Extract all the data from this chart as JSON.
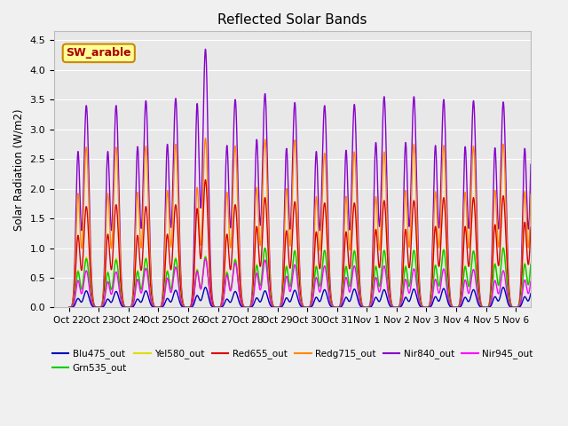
{
  "title": "Reflected Solar Bands",
  "ylabel": "Solar Radiation (W/m2)",
  "ylim": [
    0,
    4.65
  ],
  "yticks": [
    0.0,
    0.5,
    1.0,
    1.5,
    2.0,
    2.5,
    3.0,
    3.5,
    4.0,
    4.5
  ],
  "background_color": "#f0f0f0",
  "plot_bg_color": "#e8e8e8",
  "grid_color": "#ffffff",
  "annotation_text": "SW_arable",
  "annotation_bg": "#ffff99",
  "annotation_border": "#cc8800",
  "annotation_text_color": "#aa0000",
  "series": {
    "Blu475_out": {
      "color": "#0000bb",
      "lw": 1.0
    },
    "Grn535_out": {
      "color": "#00cc00",
      "lw": 1.0
    },
    "Yel580_out": {
      "color": "#dddd00",
      "lw": 1.0
    },
    "Red655_out": {
      "color": "#dd0000",
      "lw": 1.0
    },
    "Redg715_out": {
      "color": "#ff8800",
      "lw": 1.0
    },
    "Nir840_out": {
      "color": "#8800cc",
      "lw": 1.0
    },
    "Nir945_out": {
      "color": "#ff00ff",
      "lw": 1.0
    }
  },
  "tick_labels": [
    "Oct 22",
    "Oct 23",
    "Oct 24",
    "Oct 25",
    "Oct 26",
    "Oct 27",
    "Oct 28",
    "Oct 29",
    "Oct 30",
    "Oct 31",
    "Nov 1",
    "Nov 2",
    "Nov 3",
    "Nov 4",
    "Nov 5",
    "Nov 6"
  ],
  "tick_positions": [
    0,
    1,
    2,
    3,
    4,
    5,
    6,
    7,
    8,
    9,
    10,
    11,
    12,
    13,
    14,
    15
  ],
  "day_peaks_am": {
    "Blu475": [
      0.15,
      0.14,
      0.14,
      0.15,
      0.2,
      0.14,
      0.16,
      0.16,
      0.17,
      0.17,
      0.17,
      0.17,
      0.18,
      0.17,
      0.18,
      0.18
    ],
    "Grn535": [
      0.6,
      0.58,
      0.6,
      0.6,
      0.62,
      0.58,
      0.7,
      0.68,
      0.68,
      0.68,
      0.68,
      0.68,
      0.7,
      0.68,
      0.72,
      0.72
    ],
    "Yel580": [
      0.62,
      0.6,
      0.62,
      0.62,
      0.64,
      0.6,
      0.72,
      0.7,
      0.7,
      0.7,
      0.7,
      0.7,
      0.72,
      0.7,
      0.74,
      0.74
    ],
    "Red655": [
      1.2,
      1.22,
      1.2,
      1.22,
      1.65,
      1.22,
      1.35,
      1.28,
      1.26,
      1.26,
      1.3,
      1.3,
      1.35,
      1.35,
      1.38,
      1.42
    ],
    "Redg715": [
      1.9,
      1.9,
      1.92,
      1.95,
      2.0,
      1.92,
      2.0,
      1.98,
      1.85,
      1.85,
      1.85,
      1.95,
      1.93,
      1.92,
      1.95,
      1.93
    ],
    "Nir840": [
      2.6,
      2.6,
      2.68,
      2.72,
      3.4,
      2.7,
      2.8,
      2.65,
      2.6,
      2.62,
      2.75,
      2.75,
      2.7,
      2.68,
      2.66,
      2.65
    ],
    "Nir945": [
      0.45,
      0.43,
      0.47,
      0.49,
      0.6,
      0.54,
      0.57,
      0.52,
      0.5,
      0.5,
      0.5,
      0.47,
      0.47,
      0.46,
      0.45,
      0.46
    ]
  },
  "day_peaks_pm": {
    "Blu475": [
      0.28,
      0.27,
      0.28,
      0.29,
      0.34,
      0.27,
      0.28,
      0.29,
      0.3,
      0.31,
      0.3,
      0.31,
      0.32,
      0.3,
      0.34,
      0.34
    ],
    "Grn535": [
      0.82,
      0.8,
      0.82,
      0.82,
      0.85,
      0.8,
      1.0,
      0.95,
      0.96,
      0.95,
      0.96,
      0.96,
      0.97,
      0.95,
      1.0,
      1.05
    ],
    "Yel580": [
      0.85,
      0.83,
      0.84,
      0.84,
      0.87,
      0.82,
      1.0,
      0.97,
      0.97,
      0.97,
      0.97,
      0.97,
      0.98,
      0.96,
      1.01,
      1.05
    ],
    "Red655": [
      1.7,
      1.73,
      1.7,
      1.73,
      2.15,
      1.73,
      1.85,
      1.78,
      1.76,
      1.76,
      1.8,
      1.8,
      1.85,
      1.85,
      1.88,
      1.93
    ],
    "Redg715": [
      2.7,
      2.7,
      2.72,
      2.75,
      2.85,
      2.72,
      2.83,
      2.82,
      2.6,
      2.62,
      2.62,
      2.75,
      2.73,
      2.72,
      2.75,
      2.73
    ],
    "Nir840": [
      3.4,
      3.4,
      3.48,
      3.52,
      4.35,
      3.5,
      3.6,
      3.45,
      3.4,
      3.42,
      3.55,
      3.55,
      3.5,
      3.48,
      3.46,
      3.45
    ],
    "Nir945": [
      0.62,
      0.6,
      0.66,
      0.68,
      0.82,
      0.75,
      0.8,
      0.72,
      0.7,
      0.7,
      0.7,
      0.65,
      0.65,
      0.64,
      0.62,
      0.63
    ]
  }
}
